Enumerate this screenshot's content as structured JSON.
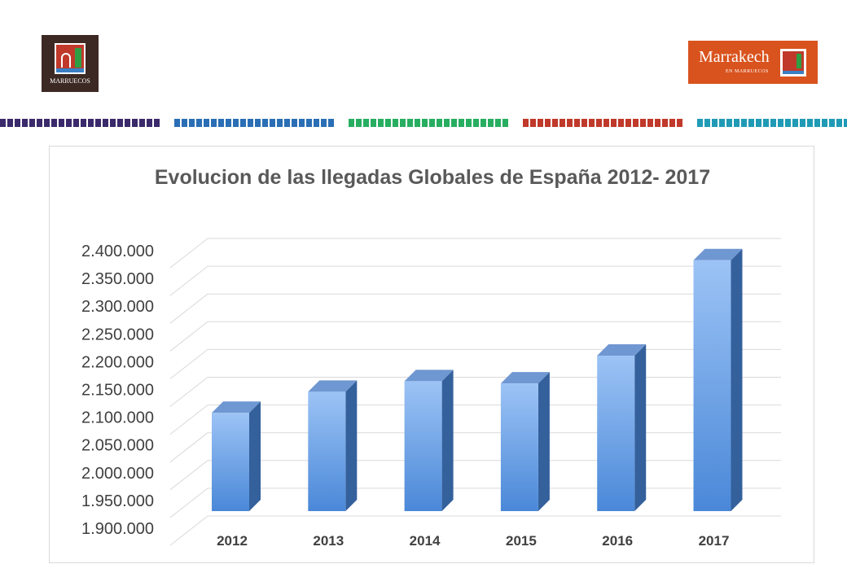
{
  "logos": {
    "left_text": "MARRUECOS",
    "right_name": "Marrakech",
    "right_sub": "EN MARRUECOS"
  },
  "colors": {
    "bar_front_top": "#9cc3f5",
    "bar_front_bottom": "#4a88d8",
    "bar_side": "#34609c",
    "bar_top": "#6f97d2",
    "grid": "#d9d9d9",
    "title": "#595959",
    "axis_text": "#404040",
    "stripe_palette": [
      "#3b2a6b",
      "#e86f1e",
      "#c0392b",
      "#f2b705",
      "#2a6fb5",
      "#4a2c2a",
      "#1f9bb5",
      "#7d3c98",
      "#27ae60",
      "#d35400"
    ]
  },
  "chart_data": {
    "type": "bar",
    "title": "Evolucion de las llegadas Globales de España 2012- 2017",
    "categories": [
      "2012",
      "2013",
      "2014",
      "2015",
      "2016",
      "2017"
    ],
    "values": [
      2077000,
      2115000,
      2134000,
      2130000,
      2180000,
      2352000
    ],
    "ylim": [
      1900000,
      2400000
    ],
    "yticks": [
      "1.900.000",
      "1.950.000",
      "2.000.000",
      "2.050.000",
      "2.100.000",
      "2.150.000",
      "2.200.000",
      "2.250.000",
      "2.300.000",
      "2.350.000",
      "2.400.000"
    ],
    "xlabel": "",
    "ylabel": "",
    "legend": "none",
    "grid": true
  }
}
